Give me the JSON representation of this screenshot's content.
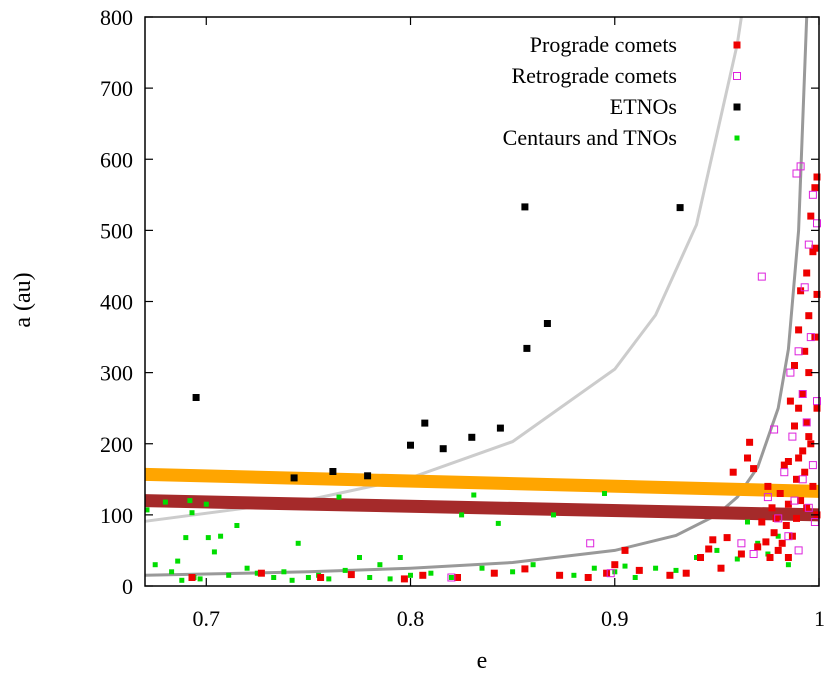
{
  "chart_data": {
    "type": "scatter",
    "title": "",
    "xlabel": "e",
    "ylabel": "a (au)",
    "xlim": [
      0.67,
      1.0
    ],
    "ylim": [
      0,
      800
    ],
    "xticks": [
      {
        "value": 0.7,
        "label": "0.7"
      },
      {
        "value": 0.8,
        "label": "0.8"
      },
      {
        "value": 0.9,
        "label": "0.9"
      },
      {
        "value": 1.0,
        "label": "1"
      }
    ],
    "yticks": [
      {
        "value": 0,
        "label": "0"
      },
      {
        "value": 100,
        "label": "100"
      },
      {
        "value": 200,
        "label": "200"
      },
      {
        "value": 300,
        "label": "300"
      },
      {
        "value": 400,
        "label": "400"
      },
      {
        "value": 500,
        "label": "500"
      },
      {
        "value": 600,
        "label": "600"
      },
      {
        "value": 700,
        "label": "700"
      },
      {
        "value": 800,
        "label": "800"
      }
    ],
    "legend_position": "top-right",
    "series": [
      {
        "name": "Prograde comets",
        "marker": "filled-square",
        "color": "#ee0000",
        "points": [
          [
            0.693,
            12
          ],
          [
            0.727,
            18
          ],
          [
            0.756,
            12
          ],
          [
            0.771,
            16
          ],
          [
            0.797,
            10
          ],
          [
            0.806,
            15
          ],
          [
            0.823,
            12
          ],
          [
            0.841,
            18
          ],
          [
            0.856,
            24
          ],
          [
            0.873,
            15
          ],
          [
            0.887,
            12
          ],
          [
            0.896,
            18
          ],
          [
            0.9,
            30
          ],
          [
            0.905,
            50
          ],
          [
            0.912,
            22
          ],
          [
            0.927,
            15
          ],
          [
            0.935,
            18
          ],
          [
            0.942,
            40
          ],
          [
            0.946,
            52
          ],
          [
            0.948,
            65
          ],
          [
            0.952,
            25
          ],
          [
            0.955,
            68
          ],
          [
            0.958,
            160
          ],
          [
            0.962,
            45
          ],
          [
            0.965,
            180
          ],
          [
            0.966,
            202
          ],
          [
            0.968,
            165
          ],
          [
            0.97,
            55
          ],
          [
            0.972,
            90
          ],
          [
            0.974,
            62
          ],
          [
            0.975,
            140
          ],
          [
            0.976,
            40
          ],
          [
            0.977,
            110
          ],
          [
            0.978,
            75
          ],
          [
            0.979,
            95
          ],
          [
            0.98,
            50
          ],
          [
            0.981,
            130
          ],
          [
            0.982,
            60
          ],
          [
            0.983,
            170
          ],
          [
            0.984,
            85
          ],
          [
            0.985,
            115
          ],
          [
            0.985,
            40
          ],
          [
            0.986,
            260
          ],
          [
            0.987,
            70
          ],
          [
            0.988,
            225
          ],
          [
            0.988,
            310
          ],
          [
            0.989,
            150
          ],
          [
            0.989,
            95
          ],
          [
            0.99,
            180
          ],
          [
            0.99,
            360
          ],
          [
            0.991,
            415
          ],
          [
            0.991,
            120
          ],
          [
            0.992,
            270
          ],
          [
            0.992,
            190
          ],
          [
            0.993,
            330
          ],
          [
            0.993,
            160
          ],
          [
            0.994,
            440
          ],
          [
            0.994,
            230
          ],
          [
            0.995,
            380
          ],
          [
            0.995,
            300
          ],
          [
            0.996,
            520
          ],
          [
            0.996,
            200
          ],
          [
            0.997,
            470
          ],
          [
            0.997,
            140
          ],
          [
            0.998,
            560
          ],
          [
            0.998,
            350
          ],
          [
            0.999,
            410
          ],
          [
            0.999,
            250
          ],
          [
            0.999,
            575
          ],
          [
            0.999,
            100
          ],
          [
            0.985,
            175
          ],
          [
            0.99,
            250
          ],
          [
            0.995,
            210
          ],
          [
            0.998,
            475
          ],
          [
            0.994,
            110
          ]
        ]
      },
      {
        "name": "Retrograde comets",
        "marker": "open-square",
        "color": "#dd22dd",
        "points": [
          [
            0.82,
            12
          ],
          [
            0.888,
            60
          ],
          [
            0.898,
            18
          ],
          [
            0.962,
            60
          ],
          [
            0.968,
            45
          ],
          [
            0.972,
            435
          ],
          [
            0.975,
            125
          ],
          [
            0.978,
            220
          ],
          [
            0.98,
            95
          ],
          [
            0.983,
            160
          ],
          [
            0.985,
            70
          ],
          [
            0.986,
            300
          ],
          [
            0.987,
            210
          ],
          [
            0.988,
            120
          ],
          [
            0.989,
            580
          ],
          [
            0.99,
            330
          ],
          [
            0.99,
            50
          ],
          [
            0.991,
            590
          ],
          [
            0.992,
            270
          ],
          [
            0.992,
            150
          ],
          [
            0.993,
            420
          ],
          [
            0.994,
            230
          ],
          [
            0.995,
            480
          ],
          [
            0.995,
            110
          ],
          [
            0.996,
            350
          ],
          [
            0.997,
            170
          ],
          [
            0.997,
            550
          ],
          [
            0.998,
            90
          ],
          [
            0.999,
            510
          ],
          [
            0.999,
            260
          ]
        ]
      },
      {
        "name": "ETNOs",
        "marker": "filled-square",
        "color": "#000000",
        "points": [
          [
            0.695,
            265
          ],
          [
            0.743,
            152
          ],
          [
            0.762,
            161
          ],
          [
            0.779,
            155
          ],
          [
            0.8,
            198
          ],
          [
            0.807,
            229
          ],
          [
            0.816,
            193
          ],
          [
            0.83,
            209
          ],
          [
            0.844,
            222
          ],
          [
            0.856,
            533
          ],
          [
            0.857,
            334
          ],
          [
            0.867,
            369
          ],
          [
            0.932,
            532
          ]
        ]
      },
      {
        "name": "Centaurs and TNOs",
        "marker": "small-square",
        "color": "#00dd00",
        "points": [
          [
            0.671,
            107
          ],
          [
            0.675,
            30
          ],
          [
            0.68,
            118
          ],
          [
            0.683,
            20
          ],
          [
            0.686,
            35
          ],
          [
            0.688,
            8
          ],
          [
            0.69,
            68
          ],
          [
            0.692,
            120
          ],
          [
            0.693,
            103
          ],
          [
            0.694,
            12
          ],
          [
            0.697,
            10
          ],
          [
            0.7,
            115
          ],
          [
            0.701,
            68
          ],
          [
            0.704,
            48
          ],
          [
            0.707,
            70
          ],
          [
            0.711,
            15
          ],
          [
            0.715,
            85
          ],
          [
            0.72,
            25
          ],
          [
            0.725,
            18
          ],
          [
            0.733,
            12
          ],
          [
            0.738,
            20
          ],
          [
            0.742,
            8
          ],
          [
            0.745,
            60
          ],
          [
            0.75,
            12
          ],
          [
            0.755,
            15
          ],
          [
            0.76,
            10
          ],
          [
            0.765,
            125
          ],
          [
            0.768,
            22
          ],
          [
            0.775,
            40
          ],
          [
            0.78,
            12
          ],
          [
            0.785,
            30
          ],
          [
            0.79,
            10
          ],
          [
            0.795,
            40
          ],
          [
            0.8,
            15
          ],
          [
            0.81,
            18
          ],
          [
            0.82,
            12
          ],
          [
            0.825,
            100
          ],
          [
            0.831,
            128
          ],
          [
            0.835,
            25
          ],
          [
            0.843,
            88
          ],
          [
            0.85,
            20
          ],
          [
            0.86,
            30
          ],
          [
            0.87,
            100
          ],
          [
            0.88,
            15
          ],
          [
            0.89,
            25
          ],
          [
            0.895,
            130
          ],
          [
            0.9,
            20
          ],
          [
            0.905,
            28
          ],
          [
            0.91,
            12
          ],
          [
            0.92,
            25
          ],
          [
            0.93,
            22
          ],
          [
            0.94,
            40
          ],
          [
            0.95,
            50
          ],
          [
            0.96,
            38
          ],
          [
            0.965,
            90
          ],
          [
            0.97,
            60
          ],
          [
            0.975,
            45
          ],
          [
            0.98,
            70
          ],
          [
            0.985,
            30
          ]
        ]
      }
    ],
    "curves": [
      {
        "name": "light gray curve",
        "color": "#cccccc",
        "points": [
          [
            0.67,
            91
          ],
          [
            0.75,
            121
          ],
          [
            0.8,
            152
          ],
          [
            0.85,
            203
          ],
          [
            0.9,
            305
          ],
          [
            0.92,
            381
          ],
          [
            0.94,
            508
          ],
          [
            0.96,
            762
          ],
          [
            0.962,
            800
          ]
        ]
      },
      {
        "name": "dark gray curve",
        "color": "#999999",
        "points": [
          [
            0.67,
            15
          ],
          [
            0.75,
            20
          ],
          [
            0.8,
            25
          ],
          [
            0.85,
            33
          ],
          [
            0.9,
            50
          ],
          [
            0.93,
            71
          ],
          [
            0.95,
            100
          ],
          [
            0.96,
            125
          ],
          [
            0.97,
            167
          ],
          [
            0.98,
            250
          ],
          [
            0.985,
            333
          ],
          [
            0.99,
            500
          ],
          [
            0.994,
            800
          ]
        ]
      }
    ],
    "bands": [
      {
        "name": "orange band",
        "color": "#ffa500",
        "from": [
          0.67,
          157
        ],
        "to": [
          1.0,
          133
        ]
      },
      {
        "name": "brown band",
        "color": "#a52a2a",
        "from": [
          0.67,
          120
        ],
        "to": [
          1.0,
          100
        ]
      }
    ]
  }
}
